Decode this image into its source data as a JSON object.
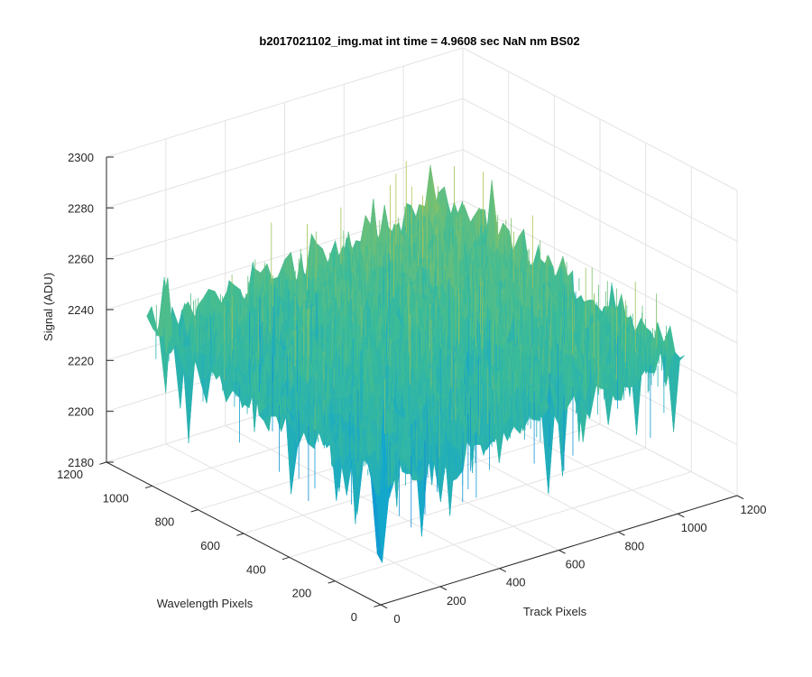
{
  "chart_data": {
    "type": "surface",
    "title": "b2017021102_img.mat int time = 4.9608 sec  NaN nm BS02",
    "xlabel": "Track Pixels",
    "ylabel": "Wavelength Pixels",
    "zlabel": "Signal (ADU)",
    "x_ticks": [
      "0",
      "200",
      "400",
      "600",
      "800",
      "1000",
      "1200"
    ],
    "y_ticks": [
      "0",
      "200",
      "400",
      "600",
      "800",
      "1000",
      "1200"
    ],
    "z_ticks": [
      "2180",
      "2200",
      "2220",
      "2240",
      "2260",
      "2280",
      "2300"
    ],
    "xlim": [
      0,
      1200
    ],
    "ylim": [
      0,
      1200
    ],
    "zlim": [
      2180,
      2300
    ],
    "data_extent": {
      "x": [
        0,
        1024
      ],
      "y": [
        0,
        1024
      ]
    },
    "surface_level_approx": 2238,
    "noise_range_approx": [
      2190,
      2295
    ],
    "grid": true,
    "colormap": [
      "#0b6fe0",
      "#14a7cc",
      "#3bbb98",
      "#9cc35a",
      "#e7be3a"
    ]
  }
}
